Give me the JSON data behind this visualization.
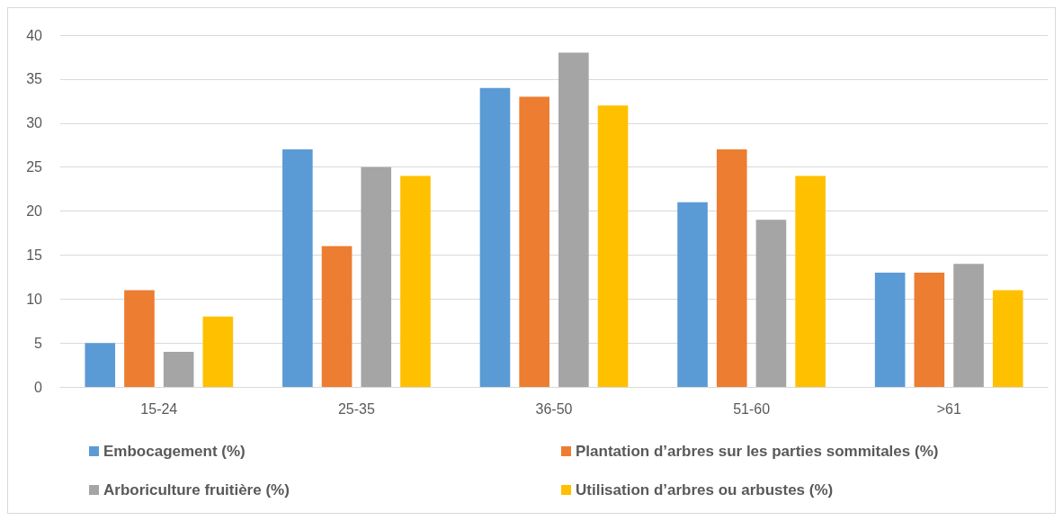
{
  "chart_data": {
    "type": "bar",
    "categories": [
      "15-24",
      "25-35",
      "36-50",
      "51-60",
      ">61"
    ],
    "series": [
      {
        "name": "Embocagement (%)",
        "color": "#5b9bd5",
        "values": [
          5,
          27,
          34,
          21,
          13
        ]
      },
      {
        "name": "Plantation d’arbres sur les parties sommitales (%)",
        "color": "#ed7d31",
        "values": [
          11,
          16,
          33,
          27,
          13
        ]
      },
      {
        "name": "Arboriculture fruitière (%)",
        "color": "#a5a5a5",
        "values": [
          4,
          25,
          38,
          19,
          14
        ]
      },
      {
        "name": "Utilisation d’arbres ou arbustes (%)",
        "color": "#ffc000",
        "values": [
          8,
          24,
          32,
          24,
          11
        ]
      }
    ],
    "ylim": [
      0,
      40
    ],
    "yticks": [
      0,
      5,
      10,
      15,
      20,
      25,
      30,
      35,
      40
    ],
    "grid": "y",
    "legend": "bottom"
  }
}
